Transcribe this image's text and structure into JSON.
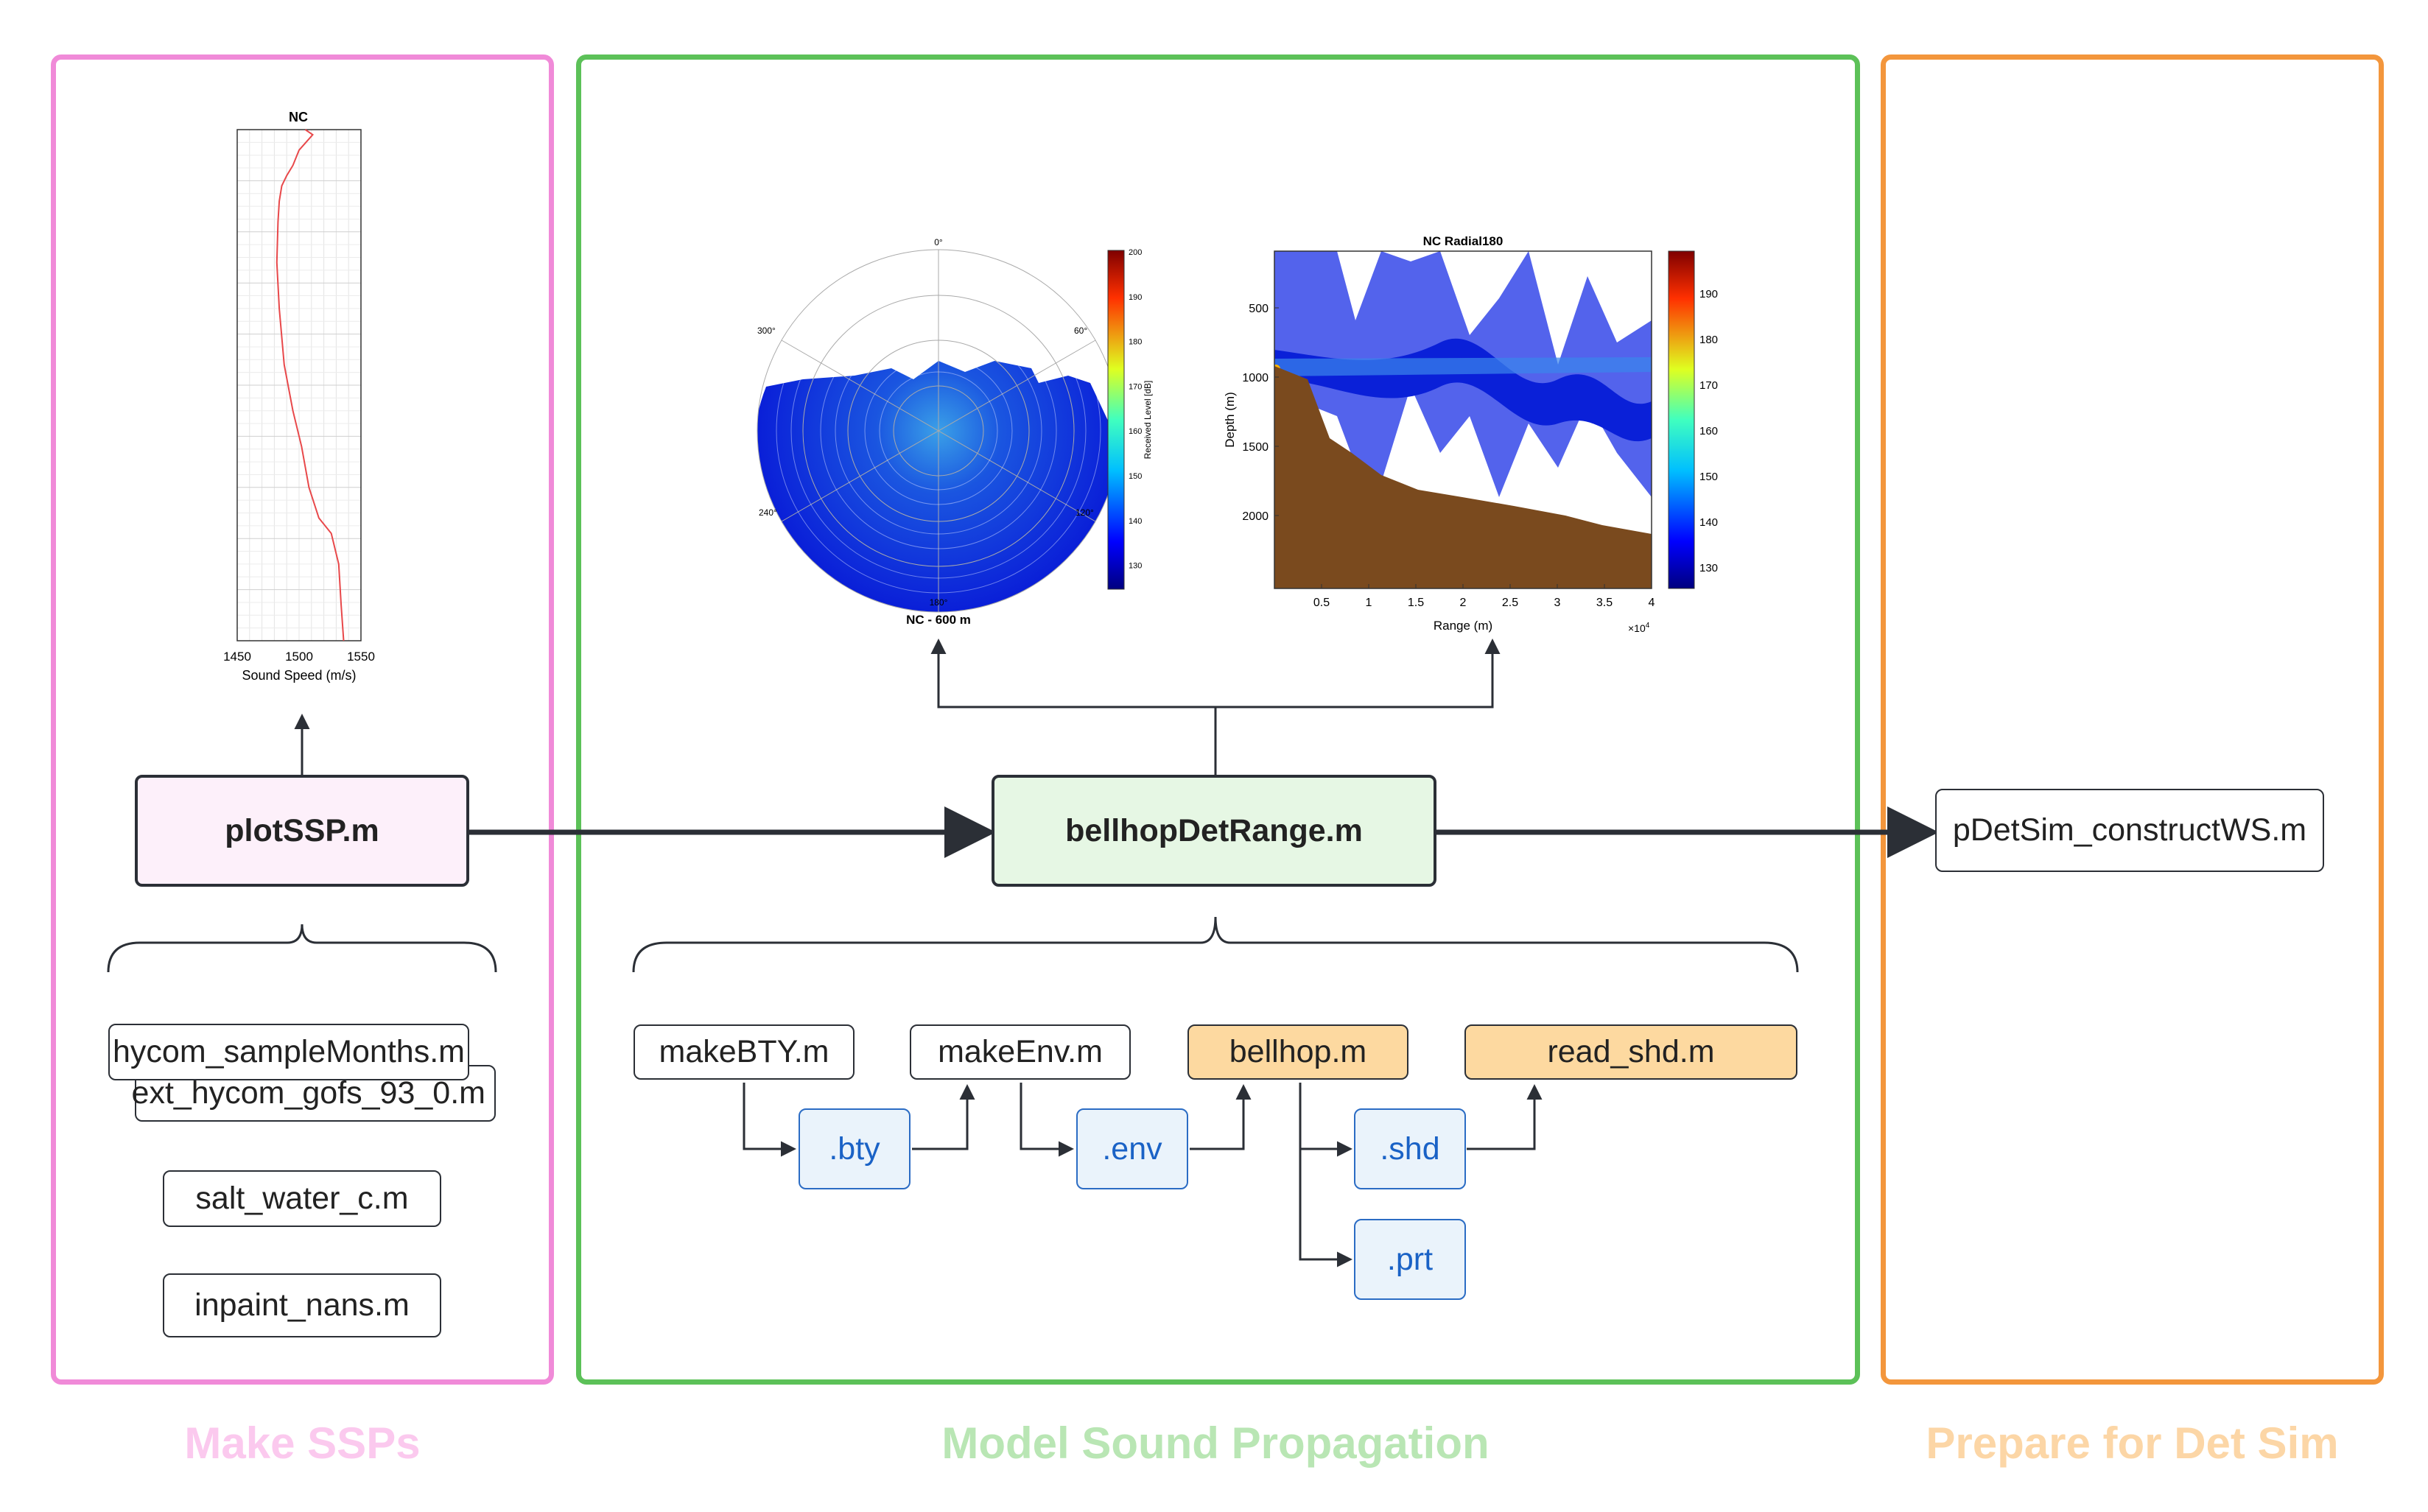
{
  "colors": {
    "make_ssps": "#f08ad8",
    "model_prop": "#5cc158",
    "prepare": "#f3963c",
    "make_ssps_label": "#fbc9ee",
    "model_prop_label": "#b9e6b4",
    "prepare_label": "#fcd6a6",
    "plotssp_fill": "#fdf0fa",
    "bellhop_fill": "#e6f7e4",
    "orange_fill": "#fdd9a0",
    "ext_fill": "#eaf3fb",
    "ext_text": "#1a62c6"
  },
  "sections": {
    "make_ssps": "Make SSPs",
    "model_prop": "Model Sound Propagation",
    "prepare": "Prepare for Det Sim"
  },
  "nodes": {
    "plotssp": "plotSSP.m",
    "bellhop_det_range": "bellhopDetRange.m",
    "pdetsim": "pDetSim_constructWS.m",
    "hycom_sample_months": "hycom_sampleMonths.m",
    "ext_hycom": "ext_hycom_gofs_93_0.m",
    "salt_water": "salt_water_c.m",
    "inpaint": "inpaint_nans.m",
    "make_bty": "makeBTY.m",
    "make_env": "makeEnv.m",
    "bellhop": "bellhop.m",
    "read_shd": "read_shd.m",
    "bty": ".bty",
    "env": ".env",
    "shd": ".shd",
    "prt": ".prt"
  },
  "ssp_plot": {
    "title": "NC",
    "xlabel": "Sound Speed (m/s)",
    "xticks": [
      "1450",
      "1500",
      "1550"
    ]
  },
  "polar_plot": {
    "title": "NC - 600 m",
    "angle_labels": [
      "0°",
      "60°",
      "120°",
      "180°",
      "240°",
      "300°"
    ],
    "colorbar_label": "Received Level [dB]",
    "colorbar_ticks": [
      "200",
      "190",
      "180",
      "170",
      "160",
      "150",
      "140",
      "130"
    ]
  },
  "radial_plot": {
    "title": "NC Radial180",
    "xlabel": "Range (m)",
    "ylabel": "Depth (m)",
    "xticks": [
      "0.5",
      "1",
      "1.5",
      "2",
      "2.5",
      "3",
      "3.5",
      "4"
    ],
    "yticks": [
      "500",
      "1000",
      "1500",
      "2000"
    ],
    "xscale": "×10",
    "xscale_exp": "4",
    "colorbar_ticks": [
      "190",
      "180",
      "170",
      "160",
      "150",
      "140",
      "130"
    ]
  },
  "chart_data": [
    {
      "type": "line",
      "title": "NC",
      "xlabel": "Sound Speed (m/s)",
      "ylabel": "",
      "xlim": [
        1450,
        1550
      ],
      "ylim": [
        0,
        1
      ],
      "series": [
        {
          "x": [
            1505,
            1511,
            1500,
            1495,
            1490,
            1486,
            1484,
            1483,
            1482,
            1484,
            1488,
            1495,
            1502,
            1508,
            1516,
            1526,
            1532,
            1534,
            1536
          ],
          "y": [
            0.0,
            0.01,
            0.04,
            0.07,
            0.09,
            0.11,
            0.14,
            0.18,
            0.26,
            0.35,
            0.46,
            0.55,
            0.62,
            0.7,
            0.76,
            0.79,
            0.85,
            0.93,
            1.0
          ]
        }
      ]
    }
  ]
}
